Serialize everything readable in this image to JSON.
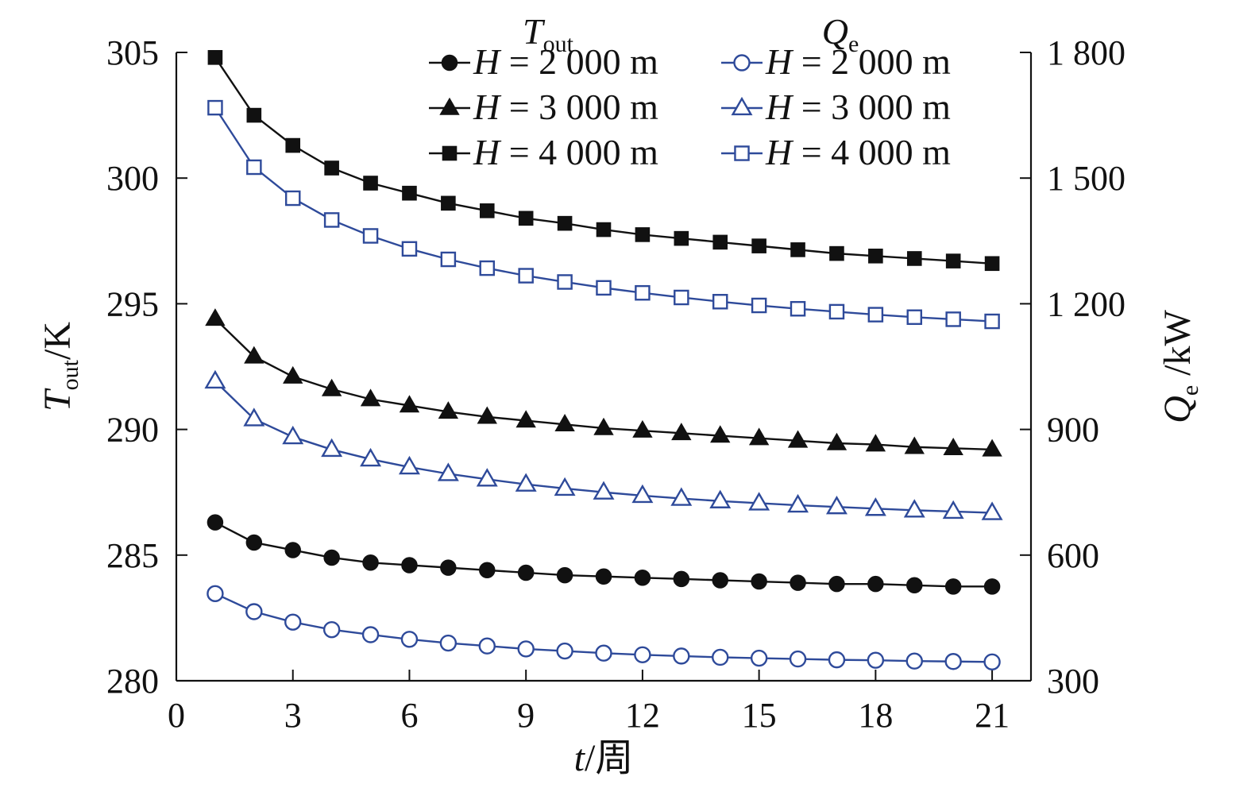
{
  "chart_data": {
    "type": "line",
    "x_label": {
      "var": "t",
      "sep": "/",
      "unit": "周"
    },
    "y_left_label": {
      "var": "T",
      "sub": "out",
      "sep": "/",
      "unit": "K"
    },
    "y_right_label": {
      "var": "Q",
      "sub": "e",
      "sep": " /",
      "unit": "kW"
    },
    "x_range": [
      0,
      22
    ],
    "y_left_range": [
      280,
      305
    ],
    "y_right_range": [
      300,
      1800
    ],
    "x_ticks": [
      {
        "value": 0,
        "label": "0"
      },
      {
        "value": 3,
        "label": "3"
      },
      {
        "value": 6,
        "label": "6"
      },
      {
        "value": 9,
        "label": "9"
      },
      {
        "value": 12,
        "label": "12"
      },
      {
        "value": 15,
        "label": "15"
      },
      {
        "value": 18,
        "label": "18"
      },
      {
        "value": 21,
        "label": "21"
      }
    ],
    "y_left_ticks": [
      {
        "value": 280,
        "label": "280"
      },
      {
        "value": 285,
        "label": "285"
      },
      {
        "value": 290,
        "label": "290"
      },
      {
        "value": 295,
        "label": "295"
      },
      {
        "value": 300,
        "label": "300"
      },
      {
        "value": 305,
        "label": "305"
      }
    ],
    "y_right_ticks": [
      {
        "value": 300,
        "label": "300"
      },
      {
        "value": 600,
        "label": "600"
      },
      {
        "value": 900,
        "label": "900"
      },
      {
        "value": 1200,
        "label": "1 200"
      },
      {
        "value": 1500,
        "label": "1 500"
      },
      {
        "value": 1800,
        "label": "1 800"
      }
    ],
    "grid": false,
    "legend": {
      "placement": "top-right",
      "columns": [
        {
          "var": "T",
          "sub": "out"
        },
        {
          "var": "Q",
          "sub": "e"
        }
      ]
    },
    "x": [
      1,
      2,
      3,
      4,
      5,
      6,
      7,
      8,
      9,
      10,
      11,
      12,
      13,
      14,
      15,
      16,
      17,
      18,
      19,
      20,
      21
    ],
    "series": [
      {
        "axis": "left",
        "marker": "circle",
        "filled": true,
        "color": "#111111",
        "legend_label": {
          "var": "H",
          "text": " = 2 000 m"
        },
        "values": [
          286.3,
          285.5,
          285.2,
          284.9,
          284.7,
          284.6,
          284.5,
          284.4,
          284.3,
          284.2,
          284.15,
          284.1,
          284.05,
          284.0,
          283.95,
          283.9,
          283.85,
          283.85,
          283.8,
          283.75,
          283.75
        ]
      },
      {
        "axis": "left",
        "marker": "triangle",
        "filled": true,
        "color": "#111111",
        "legend_label": {
          "var": "H",
          "text": " = 3 000 m"
        },
        "values": [
          294.4,
          292.9,
          292.1,
          291.6,
          291.2,
          290.95,
          290.7,
          290.5,
          290.35,
          290.2,
          290.05,
          289.95,
          289.85,
          289.75,
          289.65,
          289.55,
          289.45,
          289.4,
          289.3,
          289.25,
          289.2
        ]
      },
      {
        "axis": "left",
        "marker": "square",
        "filled": true,
        "color": "#111111",
        "legend_label": {
          "var": "H",
          "text": " = 4 000 m"
        },
        "values": [
          304.8,
          302.5,
          301.3,
          300.4,
          299.8,
          299.4,
          299.0,
          298.7,
          298.4,
          298.2,
          297.95,
          297.75,
          297.6,
          297.45,
          297.3,
          297.15,
          297.0,
          296.9,
          296.8,
          296.7,
          296.6
        ]
      },
      {
        "axis": "right",
        "marker": "circle",
        "filled": false,
        "color": "#2e4a9a",
        "legend_label": {
          "var": "H",
          "text": " = 2 000 m"
        },
        "values": [
          508,
          465,
          440,
          422,
          410,
          399,
          390,
          383,
          376,
          371,
          366,
          362,
          359,
          356,
          354,
          352,
          350,
          349,
          347,
          346,
          345
        ]
      },
      {
        "axis": "right",
        "marker": "triangle",
        "filled": false,
        "color": "#2e4a9a",
        "legend_label": {
          "var": "H",
          "text": " = 3 000 m"
        },
        "values": [
          1015,
          925,
          882,
          852,
          829,
          810,
          794,
          781,
          769,
          759,
          750,
          742,
          735,
          729,
          724,
          719,
          715,
          711,
          707,
          704,
          701
        ]
      },
      {
        "axis": "right",
        "marker": "square",
        "filled": false,
        "color": "#2e4a9a",
        "legend_label": {
          "var": "H",
          "text": " = 4 000 m"
        },
        "values": [
          1668,
          1526,
          1452,
          1400,
          1362,
          1331,
          1306,
          1285,
          1267,
          1252,
          1238,
          1226,
          1215,
          1205,
          1196,
          1188,
          1181,
          1174,
          1168,
          1163,
          1158
        ]
      }
    ]
  }
}
